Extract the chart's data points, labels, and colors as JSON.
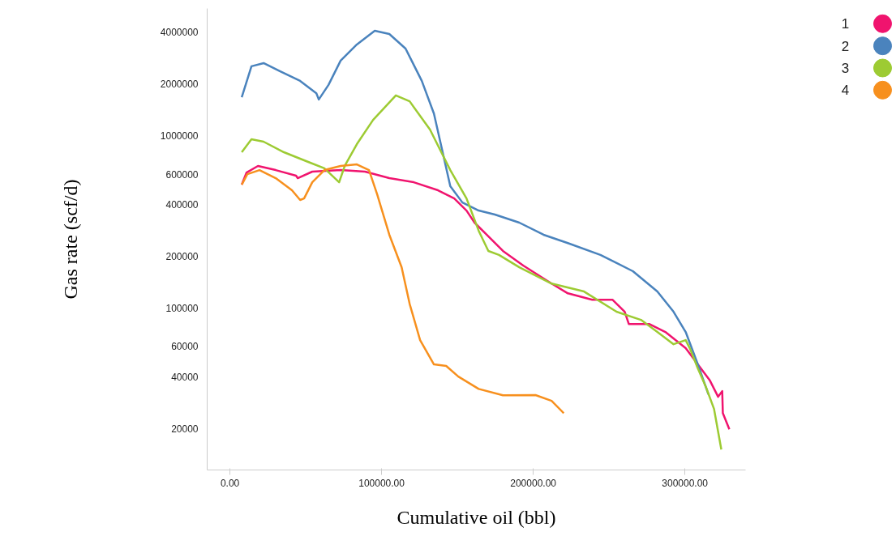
{
  "chart_data": {
    "type": "line",
    "xlabel": "Cumulative oil (bbl)",
    "ylabel": "Gas rate (scf/d)",
    "log": "y",
    "grid": false,
    "legend": "top right",
    "marker": "none",
    "line_style": "solid",
    "xlim": [
      -15000,
      340000
    ],
    "xticks": [
      {
        "value": 0,
        "label": "0.00"
      },
      {
        "value": 100000,
        "label": "100000.00"
      },
      {
        "value": 200000,
        "label": "200000.00"
      },
      {
        "value": 300000,
        "label": "300000.00"
      }
    ],
    "ylim": [
      11500,
      5500000
    ],
    "yticks": [
      20000,
      40000,
      60000,
      100000,
      200000,
      400000,
      600000,
      1000000,
      2000000,
      4000000
    ],
    "series": [
      {
        "name": "1",
        "color": "#f0146e",
        "x": [
          7800,
          11000,
          18500,
          30200,
          43600,
          44700,
          54300,
          73000,
          89100,
          105100,
          121200,
          137200,
          147900,
          156000,
          161300,
          169300,
          180000,
          193400,
          212100,
          222800,
          238900,
          252200,
          260300,
          263000,
          276400,
          287100,
          300500,
          308500,
          316500,
          321900,
          324600,
          325000,
          329300
        ],
        "values": [
          522000,
          614000,
          670000,
          634000,
          588000,
          569000,
          621000,
          634000,
          621000,
          569000,
          539000,
          484000,
          434000,
          369000,
          314000,
          267000,
          215000,
          177000,
          139000,
          122000,
          112000,
          112000,
          95400,
          81000,
          81000,
          72800,
          58600,
          47200,
          38000,
          30600,
          33000,
          24600,
          19800
        ]
      },
      {
        "name": "2",
        "color": "#4a83bd",
        "x": [
          7800,
          14200,
          22200,
          32900,
          46300,
          57000,
          58600,
          65000,
          73000,
          83700,
          95500,
          105100,
          115800,
          126500,
          134500,
          139900,
          145300,
          153300,
          164000,
          174700,
          190800,
          206800,
          222800,
          244300,
          265700,
          281800,
          292500,
          300500,
          308500,
          315500
        ],
        "values": [
          1680000,
          2540000,
          2650000,
          2380000,
          2090000,
          1770000,
          1630000,
          1980000,
          2740000,
          3400000,
          4080000,
          3910000,
          3220000,
          2090000,
          1350000,
          832000,
          511000,
          411000,
          369000,
          350000,
          314000,
          267000,
          239000,
          204000,
          164000,
          125000,
          95400,
          72800,
          47200,
          31600
        ]
      },
      {
        "name": "3",
        "color": "#9dcb33",
        "x": [
          7800,
          14200,
          22200,
          35600,
          51600,
          62300,
          72000,
          75700,
          83700,
          94400,
          109400,
          118500,
          131900,
          145300,
          156000,
          164000,
          170400,
          177400,
          190800,
          212100,
          233500,
          254900,
          271000,
          281800,
          292500,
          300500,
          303200,
          308500,
          313900,
          319200,
          324000
        ],
        "values": [
          805000,
          958000,
          927000,
          805000,
          707000,
          649000,
          539000,
          670000,
          897000,
          1240000,
          1720000,
          1590000,
          1090000,
          634000,
          434000,
          282000,
          215000,
          204000,
          173000,
          139000,
          125000,
          95400,
          85600,
          72800,
          61800,
          65300,
          58600,
          44700,
          34800,
          26000,
          15100
        ]
      },
      {
        "name": "4",
        "color": "#f7901e",
        "x": [
          7800,
          11500,
          19500,
          30200,
          40900,
          46300,
          48900,
          54300,
          62300,
          73000,
          83700,
          91700,
          97100,
          105100,
          113200,
          118500,
          125400,
          134500,
          142600,
          150600,
          164000,
          180000,
          201500,
          212100,
          220100
        ],
        "values": [
          522000,
          600000,
          634000,
          569000,
          484000,
          425000,
          434000,
          539000,
          634000,
          670000,
          684000,
          634000,
          458000,
          267000,
          173000,
          106000,
          65300,
          47200,
          46200,
          40100,
          34000,
          31200,
          31300,
          29000,
          24600
        ]
      }
    ]
  }
}
